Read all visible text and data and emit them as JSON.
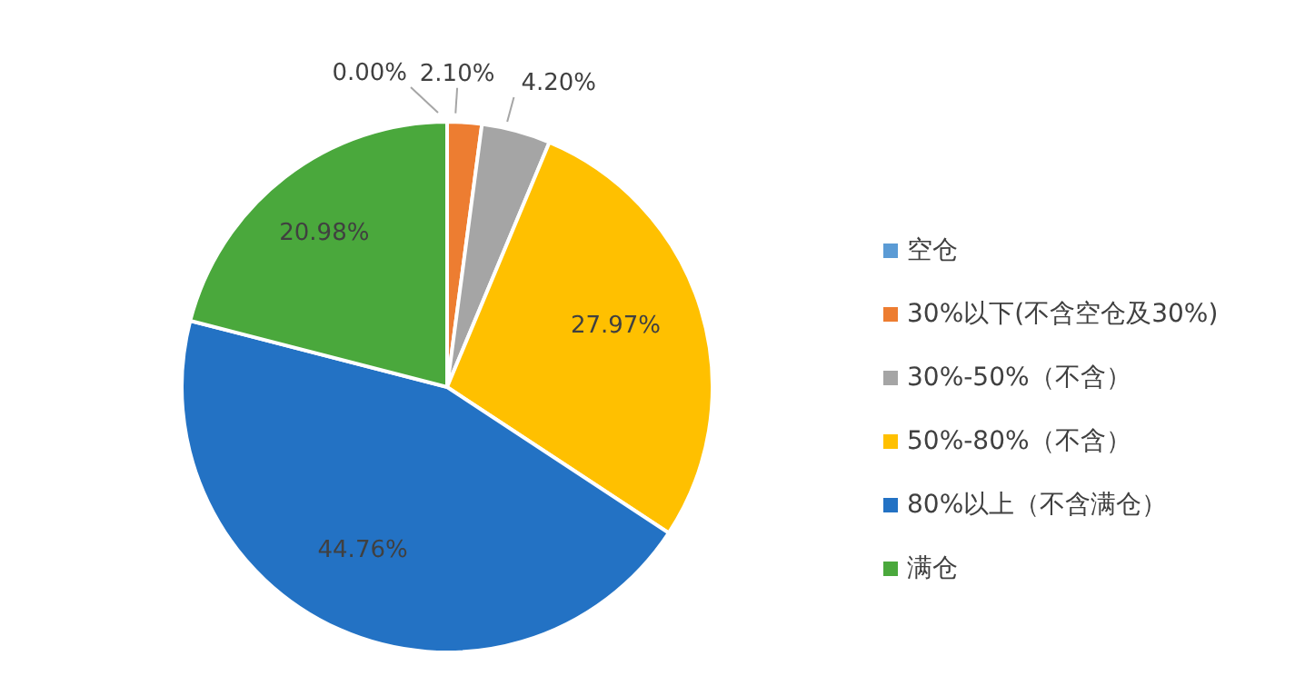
{
  "chart_data": {
    "type": "pie",
    "categories": [
      "空仓",
      "30%以下(不含空仓及30%)",
      "30%-50%（不含）",
      "50%-80%（不含）",
      "80%以上（不含满仓）",
      "满仓"
    ],
    "values": [
      0,
      2.1,
      4.2,
      27.97,
      44.76,
      20.98
    ],
    "value_labels": [
      "0.00%",
      "2.10%",
      "4.20%",
      "27.97%",
      "44.76%",
      "20.98%"
    ],
    "colors": [
      "#5b9bd5",
      "#ed7d31",
      "#a5a5a5",
      "#ffc000",
      "#2372c4",
      "#4aa83c"
    ],
    "legend": "right"
  }
}
